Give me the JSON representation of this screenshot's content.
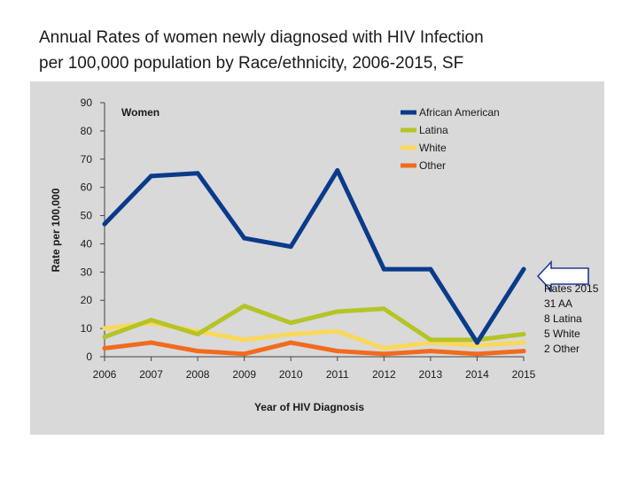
{
  "slide": {
    "title_line1": "Annual Rates of women newly diagnosed with HIV Infection",
    "title_line2": "per 100,000 population by Race/ethnicity, 2006-2015, SF"
  },
  "annotation": {
    "lines": [
      "Rates 2015",
      "31 AA",
      "8 Latina",
      "5 White",
      "2 Other"
    ]
  },
  "chart_data": {
    "type": "line",
    "subtitle": "Women",
    "xlabel": "Year of HIV Diagnosis",
    "ylabel": "Rate per 100,000",
    "x": [
      "2006",
      "2007",
      "2008",
      "2009",
      "2010",
      "2011",
      "2012",
      "2013",
      "2014",
      "2015"
    ],
    "ylim": [
      0,
      90
    ],
    "yticks": [
      0,
      10,
      20,
      30,
      40,
      50,
      60,
      70,
      80,
      90
    ],
    "grid": false,
    "legend_position": "top-right",
    "background": "#d9d9d9",
    "series": [
      {
        "name": "African American",
        "color": "#0a3a8c",
        "values": [
          47,
          64,
          65,
          42,
          39,
          66,
          31,
          31,
          5,
          31
        ]
      },
      {
        "name": "Latina",
        "color": "#b5c426",
        "values": [
          7,
          13,
          8,
          18,
          12,
          16,
          17,
          6,
          6,
          8
        ]
      },
      {
        "name": "White",
        "color": "#fad85a",
        "values": [
          10,
          12,
          9,
          6,
          8,
          9,
          3,
          5,
          4,
          5
        ]
      },
      {
        "name": "Other",
        "color": "#f26b1d",
        "values": [
          3,
          5,
          2,
          1,
          5,
          2,
          1,
          2,
          1,
          2
        ]
      }
    ]
  }
}
